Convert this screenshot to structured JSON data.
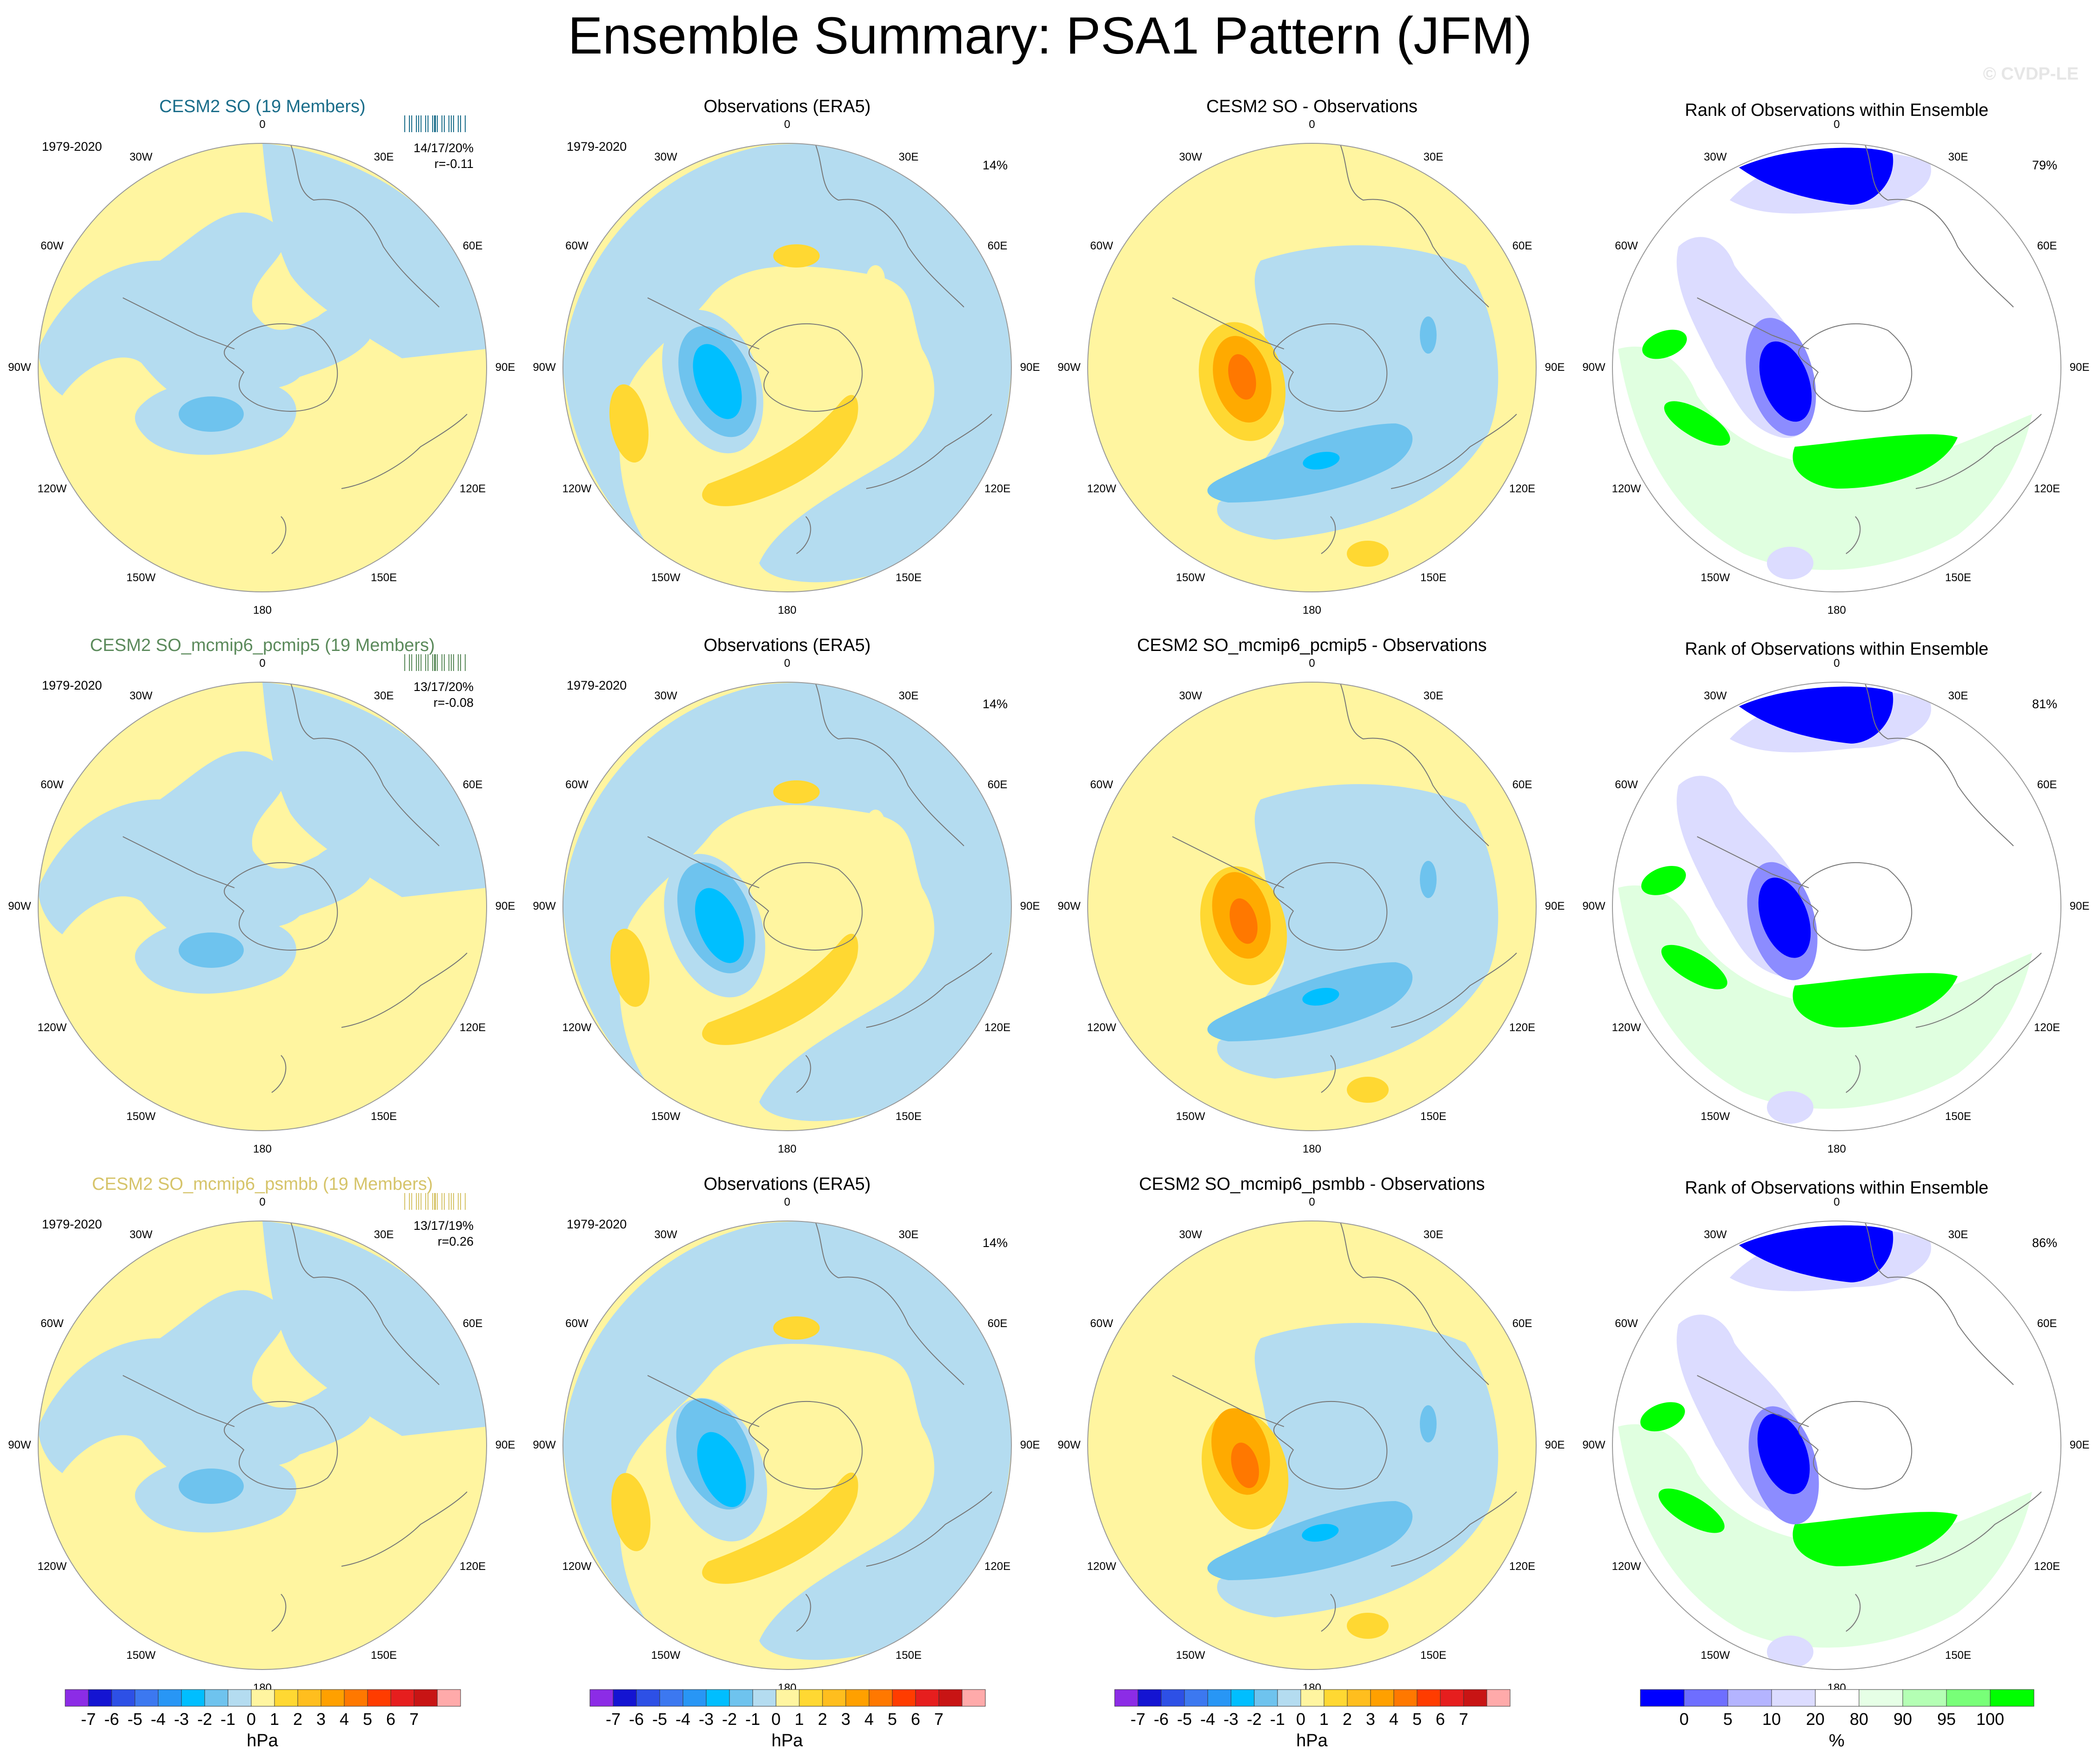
{
  "title": "Ensemble Summary: PSA1 Pattern (JFM)",
  "watermark": "© CVDP-LE",
  "colors": {
    "neg1": "#b4dcf0",
    "neg2": "#6ec3ee",
    "neg3": "#00bfff",
    "neg4": "#3aa0ff",
    "pos1": "#fff5a0",
    "pos2": "#ffd832",
    "pos3": "#ffaa00",
    "pos4": "#ff7800",
    "rank_dark": "#0000ff",
    "rank_mid": "#8c8cff",
    "rank_light": "#dcdcff",
    "rank_green": "#00ff00",
    "rank_lightgreen": "#e0ffe0"
  },
  "chart_data": {
    "type": "map_grid",
    "rows": [
      {
        "ensemble": {
          "title": "CESM2 SO (19 Members)",
          "title_color": "#1a6d8a",
          "period": "1979-2020",
          "stats_line1": "14/17/20%",
          "stats_line2": "r=-0.11"
        },
        "obs": {
          "title": "Observations (ERA5)",
          "period": "1979-2020",
          "pct": "14%"
        },
        "diff": {
          "title": "CESM2 SO - Observations"
        },
        "rank": {
          "title": "Rank of Observations within Ensemble",
          "pct": "79%"
        }
      },
      {
        "ensemble": {
          "title": "CESM2 SO_mcmip6_pcmip5 (19 Members)",
          "title_color": "#5b8a5b",
          "period": "1979-2020",
          "stats_line1": "13/17/20%",
          "stats_line2": "r=-0.08"
        },
        "obs": {
          "title": "Observations (ERA5)",
          "period": "1979-2020",
          "pct": "14%"
        },
        "diff": {
          "title": "CESM2 SO_mcmip6_pcmip5 - Observations"
        },
        "rank": {
          "title": "Rank of Observations within Ensemble",
          "pct": "81%"
        }
      },
      {
        "ensemble": {
          "title": "CESM2 SO_mcmip6_psmbb (19 Members)",
          "title_color": "#d6c46a",
          "period": "1979-2020",
          "stats_line1": "13/17/19%",
          "stats_line2": "r=0.26"
        },
        "obs": {
          "title": "Observations (ERA5)",
          "period": "1979-2020",
          "pct": "14%"
        },
        "diff": {
          "title": "CESM2 SO_mcmip6_psmbb - Observations"
        },
        "rank": {
          "title": "Rank of Observations within Ensemble",
          "pct": "86%"
        }
      }
    ],
    "longitude_labels": [
      "0",
      "30E",
      "60E",
      "90E",
      "120E",
      "150E",
      "180",
      "150W",
      "120W",
      "90W",
      "60W",
      "30W"
    ],
    "hpa_colorbar": {
      "unit": "hPa",
      "colors": [
        "#8c2ce6",
        "#1414d2",
        "#2d50e6",
        "#3c78f0",
        "#2896f5",
        "#00beff",
        "#6ec3ee",
        "#b4dcf0",
        "#fff5a0",
        "#ffd832",
        "#ffbe1e",
        "#ffa000",
        "#ff7800",
        "#ff3c00",
        "#e61e1e",
        "#c81414",
        "#ffaaaa"
      ],
      "labels": [
        "-7",
        "-6",
        "-5",
        "-4",
        "-3",
        "-2",
        "-1",
        "0",
        "1",
        "2",
        "3",
        "4",
        "5",
        "6",
        "7"
      ]
    },
    "rank_colorbar": {
      "unit": "%",
      "colors": [
        "#0000ff",
        "#6e6eff",
        "#b4b4ff",
        "#dcdcff",
        "#ffffff",
        "#e6ffe6",
        "#b4ffb4",
        "#78ff78",
        "#00ff00"
      ],
      "labels": [
        "0",
        "5",
        "10",
        "20",
        "80",
        "90",
        "95",
        "100"
      ]
    }
  }
}
